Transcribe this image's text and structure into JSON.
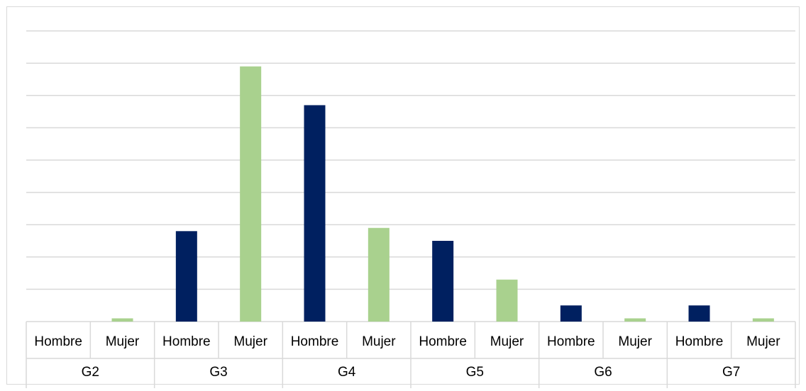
{
  "chart_data": {
    "type": "bar",
    "groups": [
      "G2",
      "G3",
      "G4",
      "G5",
      "G6",
      "G7"
    ],
    "categories": [
      "Hombre",
      "Mujer"
    ],
    "series": [
      {
        "group": "G2",
        "values": [
          0,
          0.1
        ]
      },
      {
        "group": "G3",
        "values": [
          2.8,
          7.9
        ]
      },
      {
        "group": "G4",
        "values": [
          6.7,
          2.9
        ]
      },
      {
        "group": "G5",
        "values": [
          2.5,
          1.3
        ]
      },
      {
        "group": "G6",
        "values": [
          0.5,
          0.1
        ]
      },
      {
        "group": "G7",
        "values": [
          0.5,
          0.1
        ]
      }
    ],
    "ylim": [
      0,
      9
    ],
    "grid": true,
    "legend": "none",
    "title": "",
    "xlabel": "",
    "ylabel": "",
    "colors": {
      "Hombre": "#002060",
      "Mujer": "#a9d18e"
    }
  }
}
